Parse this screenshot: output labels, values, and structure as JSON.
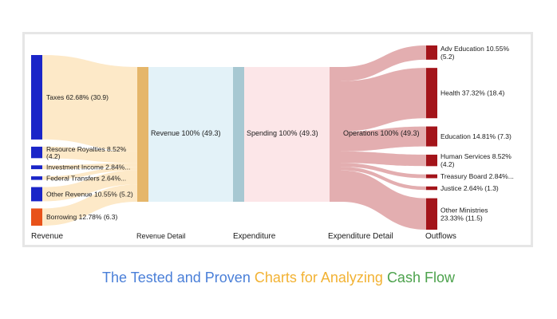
{
  "chart_data": {
    "type": "sankey",
    "unit": "billions",
    "stages": [
      "Revenue",
      "Revenue Detail",
      "Expenditure",
      "Expenditure Detail",
      "Outflows"
    ],
    "sources": [
      {
        "name": "Taxes",
        "label": "Taxes 62.68% (30.9)",
        "value": 30.9,
        "color": "#1a25c8"
      },
      {
        "name": "Resource Royalties",
        "label_line1": "Resource Royalties 8.52%",
        "label_line2": "(4.2)",
        "value": 4.2,
        "color": "#1a25c8"
      },
      {
        "name": "Investment Income",
        "label": "Investment Income 2.84%...",
        "value": 1.4,
        "color": "#1a25c8"
      },
      {
        "name": "Federal Transfers",
        "label": "Federal Transfers 2.64%...",
        "value": 1.3,
        "color": "#1a25c8"
      },
      {
        "name": "Other Revenue",
        "label": "Other Revenue 10.55% (5.2)",
        "value": 5.2,
        "color": "#1a25c8"
      },
      {
        "name": "Borrowing",
        "label": "Borrowing 12.78% (6.3)",
        "value": 6.3,
        "color": "#e8521a"
      }
    ],
    "revenue_detail": {
      "label": "Revenue 100% (49.3)",
      "value": 49.3,
      "color": "#e5b66a"
    },
    "expenditure": {
      "label": "Spending 100% (49.3)",
      "value": 49.3,
      "color": "#a7c8d2"
    },
    "expenditure_detail": {
      "label": "Operations 100% (49.3)",
      "value": 49.3,
      "color": "#e3aeb0"
    },
    "outflows": [
      {
        "name": "Adv Education",
        "label_line1": "Adv Education 10.55%",
        "label_line2": "(5.2)",
        "value": 5.2,
        "color": "#a3141a"
      },
      {
        "name": "Health",
        "label": "Health 37.32% (18.4)",
        "value": 18.4,
        "color": "#a3141a"
      },
      {
        "name": "Education",
        "label": "Education 14.81% (7.3)",
        "value": 7.3,
        "color": "#a3141a"
      },
      {
        "name": "Human Services",
        "label_line1": "Human Services 8.52%",
        "label_line2": "(4.2)",
        "value": 4.2,
        "color": "#a3141a"
      },
      {
        "name": "Treasury Board",
        "label": "Treasury Board 2.84%...",
        "value": 1.4,
        "color": "#a3141a"
      },
      {
        "name": "Justice",
        "label": "Justice 2.64% (1.3)",
        "value": 1.3,
        "color": "#a3141a"
      },
      {
        "name": "Other Ministries",
        "label_line1": "Other Ministries",
        "label_line2": "23.33% (11.5)",
        "value": 11.5,
        "color": "#a3141a"
      }
    ],
    "flow_colors": {
      "revenue": "#fde9c8",
      "detail": "#e3f2f8",
      "spending": "#fce6e8",
      "outflow": "#e3aeb0"
    }
  },
  "caption": {
    "part1": "The Tested and Proven",
    "part2": "Charts for Analyzing",
    "part3": "Cash Flow"
  }
}
